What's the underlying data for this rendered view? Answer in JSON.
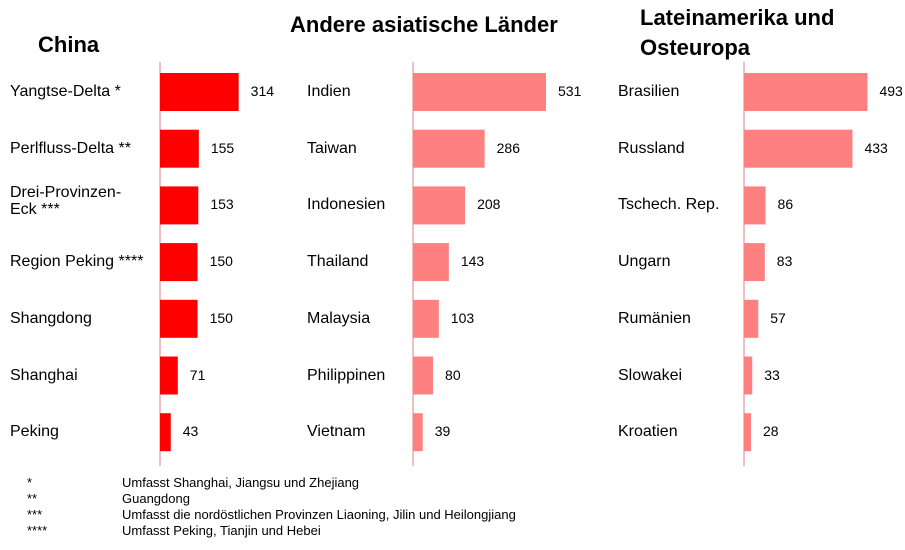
{
  "chart_data": [
    {
      "type": "bar",
      "title": "China",
      "color": "#ff0000",
      "categories": [
        "Yangtse-Delta *",
        "Perlfluss-Delta **",
        "Drei-Provinzen-\nEck ***",
        "Region Peking ****",
        "Shangdong",
        "Shanghai",
        "Peking"
      ],
      "values": [
        314,
        155,
        153,
        150,
        150,
        71,
        43
      ]
    },
    {
      "type": "bar",
      "title": "Andere asiatische Länder",
      "color": "#ff8080",
      "categories": [
        "Indien",
        "Taiwan",
        "Indonesien",
        "Thailand",
        "Malaysia",
        "Philippinen",
        "Vietnam"
      ],
      "values": [
        531,
        286,
        208,
        143,
        103,
        80,
        39
      ]
    },
    {
      "type": "bar",
      "title": "Lateinamerika und\nOsteuropa",
      "color": "#ff8080",
      "categories": [
        "Brasilien",
        "Russland",
        "Tschech. Rep.",
        "Ungarn",
        "Rumänien",
        "Slowakei",
        "Kroatien"
      ],
      "values": [
        493,
        433,
        86,
        83,
        57,
        33,
        28
      ]
    }
  ],
  "footnotes": [
    {
      "marker": "*",
      "text": "Umfasst Shanghai, Jiangsu und Zhejiang"
    },
    {
      "marker": "**",
      "text": "Guangdong"
    },
    {
      "marker": "***",
      "text": "Umfasst die nordöstlichen Provinzen Liaoning, Jilin und Heilongjiang"
    },
    {
      "marker": "****",
      "text": "Umfasst Peking, Tianjin und Hebei"
    }
  ]
}
